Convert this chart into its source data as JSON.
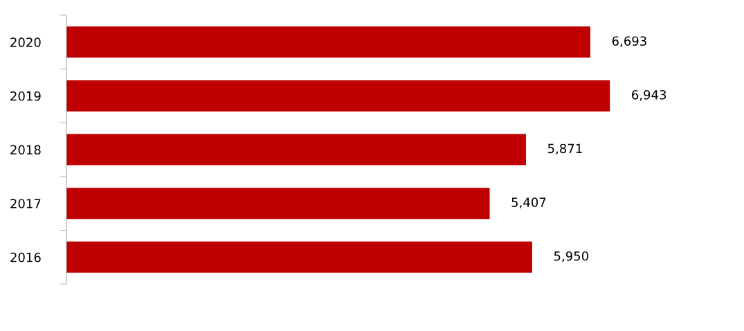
{
  "chart_data": {
    "type": "bar",
    "orientation": "horizontal",
    "categories": [
      "2020",
      "2019",
      "2018",
      "2017",
      "2016"
    ],
    "values": [
      6693,
      6943,
      5871,
      5407,
      5950
    ],
    "value_labels": [
      "6,693",
      "6,943",
      "5,871",
      "5,407",
      "5,950"
    ],
    "color": "#c00000",
    "tick_labels": "y",
    "grid": false,
    "legend": false
  }
}
